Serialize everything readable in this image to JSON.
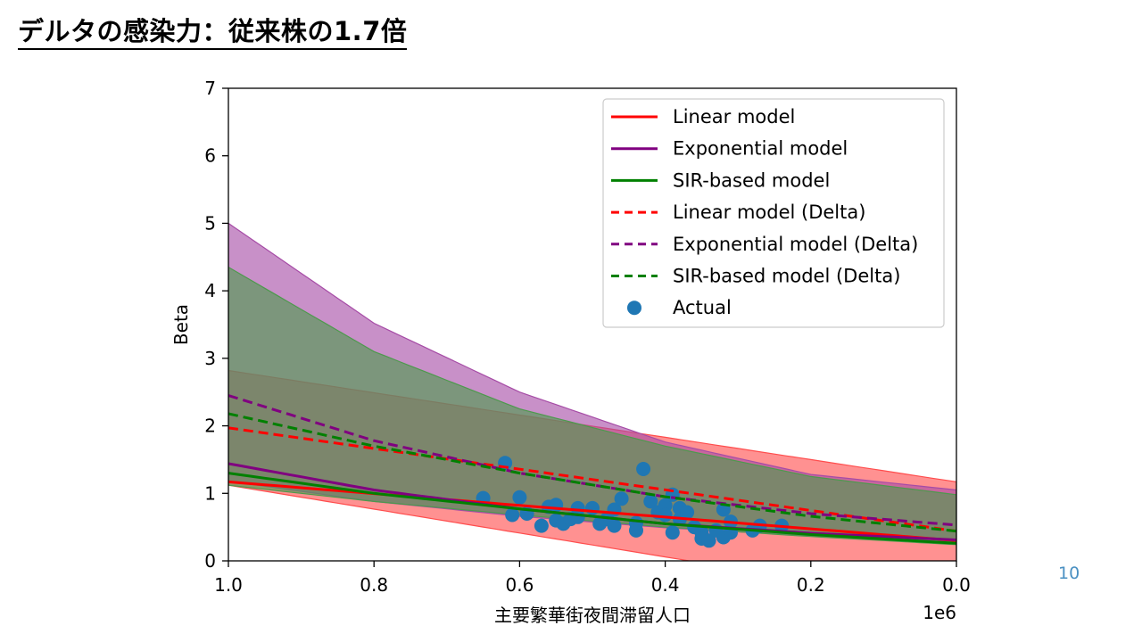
{
  "slide": {
    "title": "デルタの感染力：従来株の1.7倍",
    "page_number": "10"
  },
  "colors": {
    "red": "#ff0000",
    "purple": "#800080",
    "green": "#008000",
    "actual": "#1f77b4",
    "red_band": "#ff4d4d",
    "purple_band": "#a64ca6",
    "green_band": "#4d994d"
  },
  "chart_data": {
    "type": "line",
    "xlabel": "主要繁華街夜間滞留人口",
    "ylabel": "Beta",
    "x_offset_label": "1e6",
    "x_inverted": true,
    "xlim": [
      1.0,
      0.0
    ],
    "ylim": [
      0,
      7
    ],
    "x_ticks": [
      1.0,
      0.8,
      0.6,
      0.4,
      0.2,
      0.0
    ],
    "x_tick_labels": [
      "1.0",
      "0.8",
      "0.6",
      "0.4",
      "0.2",
      "0.0"
    ],
    "y_ticks": [
      0,
      1,
      2,
      3,
      4,
      5,
      6,
      7
    ],
    "y_tick_labels": [
      "0",
      "1",
      "2",
      "3",
      "4",
      "5",
      "6",
      "7"
    ],
    "legend_position": "top-right",
    "series": [
      {
        "name": "Linear model",
        "style": "solid",
        "color_key": "red",
        "x": [
          1.0,
          0.0
        ],
        "y": [
          1.17,
          0.3
        ]
      },
      {
        "name": "Exponential model",
        "style": "solid",
        "color_key": "purple",
        "x": [
          1.0,
          0.8,
          0.6,
          0.4,
          0.2,
          0.0
        ],
        "y": [
          1.44,
          1.05,
          0.77,
          0.55,
          0.41,
          0.31
        ]
      },
      {
        "name": "SIR-based model",
        "style": "solid",
        "color_key": "green",
        "x": [
          1.0,
          0.8,
          0.6,
          0.4,
          0.2,
          0.0
        ],
        "y": [
          1.3,
          1.0,
          0.77,
          0.55,
          0.39,
          0.26
        ]
      },
      {
        "name": "Linear model (Delta)",
        "style": "dashed",
        "color_key": "red",
        "x": [
          1.0,
          0.0
        ],
        "y": [
          1.97,
          0.44
        ]
      },
      {
        "name": "Exponential model (Delta)",
        "style": "dashed",
        "color_key": "purple",
        "x": [
          1.0,
          0.8,
          0.6,
          0.4,
          0.2,
          0.0
        ],
        "y": [
          2.45,
          1.78,
          1.3,
          0.95,
          0.7,
          0.53
        ]
      },
      {
        "name": "SIR-based model (Delta)",
        "style": "dashed",
        "color_key": "green",
        "x": [
          1.0,
          0.8,
          0.6,
          0.4,
          0.2,
          0.0
        ],
        "y": [
          2.18,
          1.7,
          1.3,
          0.95,
          0.66,
          0.44
        ]
      }
    ],
    "bands": [
      {
        "color_key": "red_band",
        "x": [
          1.0,
          0.0
        ],
        "upper": [
          2.82,
          1.17
        ],
        "lower": [
          1.12,
          -0.65
        ]
      },
      {
        "color_key": "purple_band",
        "x": [
          1.0,
          0.8,
          0.6,
          0.4,
          0.2,
          0.0
        ],
        "upper": [
          5.0,
          3.52,
          2.5,
          1.76,
          1.28,
          1.05
        ],
        "lower": [
          1.18,
          0.88,
          0.66,
          0.49,
          0.37,
          0.27
        ]
      },
      {
        "color_key": "green_band",
        "x": [
          1.0,
          0.8,
          0.6,
          0.4,
          0.2,
          0.0
        ],
        "upper": [
          4.35,
          3.1,
          2.25,
          1.7,
          1.25,
          0.98
        ],
        "lower": [
          1.12,
          0.88,
          0.68,
          0.5,
          0.36,
          0.24
        ]
      }
    ],
    "scatter": {
      "name": "Actual",
      "points": [
        [
          0.65,
          0.93
        ],
        [
          0.62,
          1.45
        ],
        [
          0.61,
          0.68
        ],
        [
          0.6,
          0.94
        ],
        [
          0.59,
          0.7
        ],
        [
          0.57,
          0.52
        ],
        [
          0.56,
          0.8
        ],
        [
          0.55,
          0.83
        ],
        [
          0.55,
          0.6
        ],
        [
          0.54,
          0.55
        ],
        [
          0.53,
          0.62
        ],
        [
          0.52,
          0.78
        ],
        [
          0.52,
          0.65
        ],
        [
          0.5,
          0.78
        ],
        [
          0.49,
          0.55
        ],
        [
          0.48,
          0.62
        ],
        [
          0.47,
          0.52
        ],
        [
          0.47,
          0.76
        ],
        [
          0.46,
          0.92
        ],
        [
          0.44,
          0.45
        ],
        [
          0.44,
          0.56
        ],
        [
          0.43,
          1.36
        ],
        [
          0.42,
          0.88
        ],
        [
          0.41,
          0.72
        ],
        [
          0.4,
          0.82
        ],
        [
          0.4,
          0.68
        ],
        [
          0.39,
          0.42
        ],
        [
          0.39,
          0.98
        ],
        [
          0.38,
          0.78
        ],
        [
          0.38,
          0.62
        ],
        [
          0.37,
          0.72
        ],
        [
          0.36,
          0.5
        ],
        [
          0.35,
          0.42
        ],
        [
          0.35,
          0.33
        ],
        [
          0.34,
          0.3
        ],
        [
          0.33,
          0.45
        ],
        [
          0.32,
          0.35
        ],
        [
          0.32,
          0.76
        ],
        [
          0.31,
          0.42
        ],
        [
          0.31,
          0.58
        ],
        [
          0.28,
          0.45
        ],
        [
          0.27,
          0.52
        ],
        [
          0.24,
          0.52
        ]
      ]
    }
  }
}
